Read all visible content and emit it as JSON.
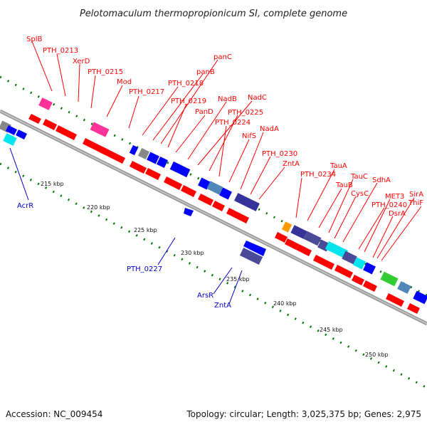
{
  "title": "Pelotomaculum thermopropionicum SI, complete genome",
  "footer": {
    "accession": "Accession: NC_009454",
    "summary": "Topology: circular; Length: 3,025,375 bp; Genes: 2,975"
  },
  "ticks": [
    "215 kbp",
    "220 kbp",
    "225 kbp",
    "230 kbp",
    "235 kbp",
    "240 kbp",
    "245 kbp",
    "250 kbp"
  ],
  "forward_labels": [
    "SplB",
    "PTH_0213",
    "XerD",
    "PTH_0215",
    "Mod",
    "PTH_0217",
    "PTH_0218",
    "panB",
    "panC",
    "PTH_0219",
    "PanD",
    "NadB",
    "NadC",
    "PTH_0225",
    "PTH_0224",
    "NifS",
    "NadA",
    "PTH_0230",
    "ZntA",
    "PTH_0234",
    "TauA",
    "TauB",
    "TauC",
    "CysC",
    "SdhA",
    "MET3",
    "PTH_0240",
    "DsrA",
    "SirA",
    "ThiF"
  ],
  "reverse_labels": [
    "AcrR",
    "PTH_0227",
    "ArsR",
    "ZntA"
  ],
  "colors": {
    "forward_gene": "#ff0000",
    "forward_label": "#ff0000",
    "reverse_gene": "#0000ff",
    "reverse_label": "#0000cc",
    "backbone": "#999999",
    "tick_dot": "#007700",
    "pink": "#ff3399",
    "grey": "#888888",
    "navy": "#333399",
    "purple": "#4a4a99",
    "steel": "#4f87b8",
    "cyan": "#00e5ee",
    "orange": "#ff9900",
    "green": "#33cc33"
  }
}
